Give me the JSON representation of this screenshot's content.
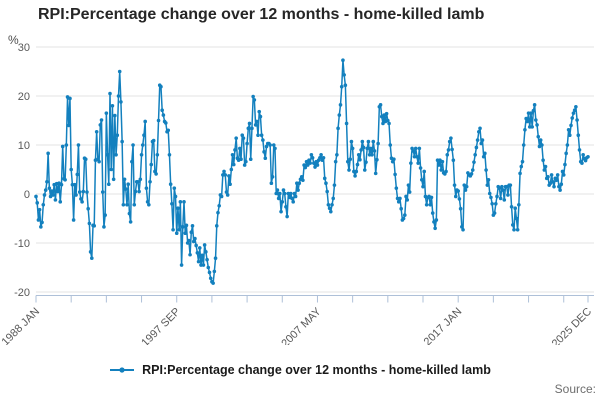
{
  "page": {
    "title": "RPI:Percentage change over 12 months - home-killed lamb",
    "y_axis_unit": "%",
    "legend_label": "RPI:Percentage change over 12 months - home-killed lamb",
    "source_label": "Source:"
  },
  "colors": {
    "series": "#1380be",
    "grid": "#e3e3e3",
    "axis": "#aec0d8",
    "tick_label": "#595959",
    "title_text": "#262626",
    "legend_text": "#1a1a1a",
    "source_text": "#6e6e6e"
  },
  "chart_data": {
    "type": "line",
    "title": "RPI:Percentage change over 12 months - home-killed lamb",
    "xlabel": "",
    "ylabel": "%",
    "ylim": [
      -20,
      30
    ],
    "y_ticks": [
      30,
      20,
      10,
      0,
      -10,
      -20
    ],
    "grid": "horizontal",
    "legend_position": "bottom",
    "x_start": "1988 JAN",
    "x_end": "2025 DEC",
    "frequency": "monthly",
    "x_tick_labels": [
      {
        "month_index": 0,
        "label": "1988 JAN"
      },
      {
        "month_index": 116,
        "label": "1997 SEP"
      },
      {
        "month_index": 232,
        "label": "2007 MAY"
      },
      {
        "month_index": 348,
        "label": "2017 JAN"
      },
      {
        "month_index": 455,
        "label": "2025 DEC"
      }
    ],
    "minor_tick_interval_months": 29,
    "series": [
      {
        "name": "RPI:Percentage change over 12 months - home-killed lamb",
        "color": "#1380be",
        "values": [
          -0.5,
          -1.8,
          -5.3,
          -3.2,
          -6.7,
          -5.8,
          -2.2,
          -0.2,
          0.8,
          2.5,
          8.3,
          1.2,
          -0.5,
          0.6,
          -0.2,
          1.9,
          -1.2,
          2.1,
          0.5,
          2.2,
          -1.6,
          1.9,
          9.7,
          3.1,
          2.9,
          10.0,
          19.8,
          14.0,
          19.5,
          5.0,
          1.9,
          -5.3,
          1.9,
          -0.2,
          4.0,
          10.0,
          0.4,
          -1.0,
          -1.6,
          0.5,
          7.3,
          7.1,
          0.4,
          -3.0,
          -6.0,
          -11.8,
          -13.1,
          -6.4,
          -6.5,
          6.9,
          12.7,
          7.1,
          6.6,
          14.1,
          15.1,
          0.4,
          -6.7,
          -4.3,
          16.5,
          8.0,
          2.0,
          20.5,
          5.0,
          18.0,
          3.0,
          16.0,
          8.0,
          12.0,
          20.0,
          25.0,
          18.8,
          10.7,
          -2.2,
          3.0,
          1.0,
          -2.2,
          2.0,
          -4.0,
          -5.7,
          6.6,
          10.0,
          -2.2,
          0.5,
          2.5,
          2.5,
          0.5,
          3.0,
          8.0,
          10.0,
          12.0,
          14.8,
          1.2,
          -1.6,
          -2.2,
          2.5,
          6.0,
          10.7,
          10.9,
          4.6,
          4.1,
          8.0,
          15.0,
          22.2,
          21.9,
          17.1,
          16.1,
          14.8,
          14.5,
          12.7,
          13.0,
          8.0,
          2.0,
          -2.0,
          -7.3,
          1.2,
          -0.5,
          -8.0,
          -2.9,
          -7.3,
          -1.6,
          -14.5,
          -6.7,
          -1.6,
          -8.0,
          -6.4,
          -10.0,
          -9.5,
          -12.4,
          -7.8,
          -6.5,
          -9.7,
          -9.1,
          -10.5,
          -12.0,
          -13.8,
          -11.0,
          -14.5,
          -12.5,
          -14.5,
          -10.4,
          -11.8,
          -13.4,
          -15.0,
          -16.0,
          -17.2,
          -17.9,
          -18.2,
          -15.8,
          -13.1,
          -6.5,
          -3.8,
          -2.4,
          -0.2,
          -0.5,
          3.9,
          4.6,
          3.9,
          0.4,
          -0.2,
          3.7,
          2.0,
          5.0,
          8.0,
          6.0,
          9.0,
          11.4,
          7.3,
          6.9,
          9.3,
          7.1,
          12.0,
          11.4,
          5.9,
          6.6,
          10.3,
          13.4,
          14.4,
          7.1,
          13.4,
          19.9,
          19.2,
          14.1,
          14.8,
          12.0,
          16.8,
          15.8,
          12.0,
          11.0,
          8.6,
          7.3,
          9.7,
          10.3,
          10.3,
          10.0,
          2.2,
          3.5,
          10.0,
          9.3,
          0.1,
          0.8,
          -0.9,
          0.1,
          -3.6,
          -1.6,
          0.8,
          0.1,
          -2.6,
          -4.6,
          0.1,
          -0.7,
          0.1,
          -0.9,
          -1.6,
          0.1,
          -0.5,
          2.2,
          0.8,
          2.2,
          3.0,
          3.5,
          2.8,
          5.9,
          5.4,
          6.6,
          5.9,
          6.9,
          6.3,
          8.0,
          7.4,
          6.3,
          5.5,
          6.6,
          5.9,
          6.9,
          7.4,
          8.0,
          6.9,
          7.4,
          3.2,
          2.2,
          0.5,
          -2.2,
          -2.9,
          -3.6,
          -2.2,
          -0.9,
          1.8,
          6.6,
          8.0,
          13.4,
          16.1,
          18.2,
          21.9,
          27.3,
          24.3,
          22.2,
          14.4,
          6.6,
          4.9,
          7.1,
          10.7,
          9.3,
          4.6,
          3.7,
          4.6,
          6.0,
          8.0,
          7.0,
          9.0,
          10.7,
          9.5,
          4.9,
          6.5,
          9.3,
          10.7,
          8.0,
          9.3,
          8.0,
          10.7,
          8.8,
          4.2,
          7.0,
          10.3,
          17.8,
          18.2,
          15.8,
          14.4,
          16.1,
          14.8,
          16.4,
          15.0,
          14.4,
          10.0,
          7.3,
          6.6,
          7.1,
          4.0,
          1.2,
          -0.9,
          -1.6,
          -0.9,
          -3.0,
          -5.3,
          -5.0,
          -4.3,
          -0.5,
          -1.2,
          1.8,
          0.4,
          6.3,
          9.3,
          8.8,
          7.6,
          9.3,
          7.6,
          6.3,
          9.3,
          5.3,
          2.9,
          1.5,
          4.6,
          -0.5,
          -2.2,
          -0.7,
          -0.5,
          -2.2,
          -0.7,
          -3.9,
          -5.7,
          -7.0,
          -5.3,
          6.9,
          5.9,
          6.9,
          4.9,
          6.6,
          4.3,
          4.1,
          4.6,
          8.0,
          9.0,
          10.7,
          11.4,
          9.1,
          6.9,
          1.8,
          -0.5,
          0.8,
          0.6,
          -1.0,
          -3.0,
          -6.7,
          -7.3,
          1.8,
          0.8,
          1.5,
          4.3,
          3.9,
          3.7,
          4.1,
          4.9,
          6.5,
          8.0,
          9.5,
          11.0,
          12.7,
          13.4,
          10.3,
          11.0,
          7.6,
          8.3,
          4.9,
          1.8,
          2.9,
          0.1,
          -0.7,
          -2.0,
          -4.3,
          -3.9,
          -2.0,
          -0.5,
          1.5,
          1.2,
          -0.9,
          1.5,
          0.8,
          -1.2,
          1.5,
          1.5,
          -0.2,
          1.8,
          1.8,
          -2.6,
          -6.3,
          -7.3,
          -2.9,
          -5.0,
          -7.3,
          -2.2,
          4.2,
          5.6,
          6.6,
          10.0,
          13.1,
          15.4,
          14.8,
          16.5,
          13.7,
          16.5,
          13.7,
          17.0,
          18.2,
          15.1,
          14.1,
          11.7,
          9.7,
          11.0,
          10.0,
          6.9,
          4.9,
          5.6,
          3.2,
          3.5,
          1.8,
          2.2,
          3.9,
          2.5,
          1.5,
          3.2,
          2.8,
          3.9,
          1.5,
          0.8,
          2.0,
          4.6,
          3.9,
          6.0,
          8.3,
          10.0,
          13.1,
          12.0,
          14.0,
          15.5,
          16.5,
          17.1,
          17.8,
          15.1,
          12.0,
          9.0,
          6.6,
          6.3,
          8.0,
          7.2,
          6.8,
          7.4,
          7.6
        ]
      }
    ]
  }
}
